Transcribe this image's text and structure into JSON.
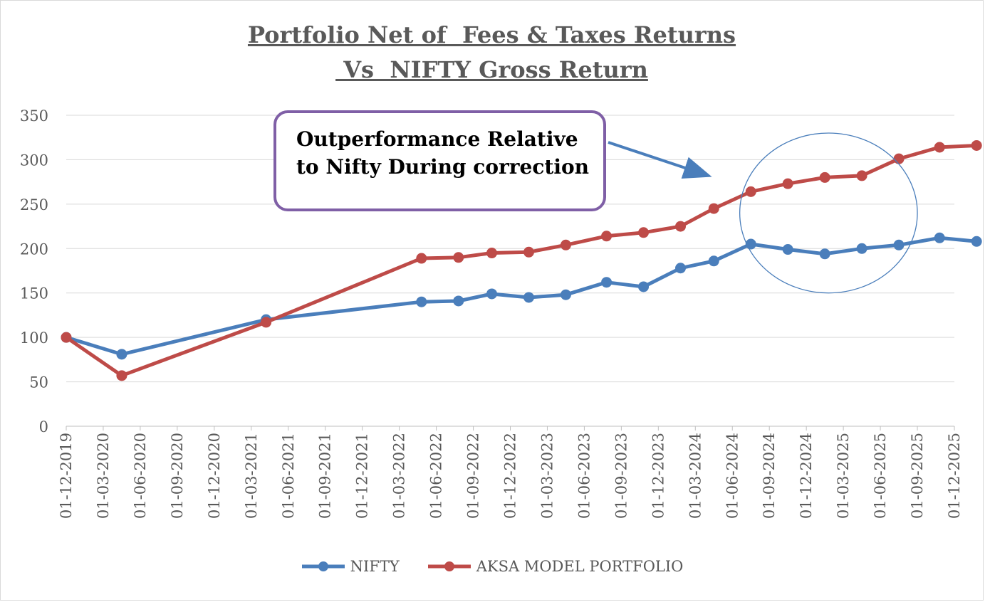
{
  "chart_data": {
    "type": "line",
    "title_line1": "Portfolio Net of  Fees & Taxes Returns",
    "title_line2": " Vs  NIFTY Gross Return",
    "xlabel": "",
    "ylabel": "",
    "ylim": [
      0,
      350
    ],
    "yticks": [
      0,
      50,
      100,
      150,
      200,
      250,
      300,
      350
    ],
    "grid": true,
    "legend_position": "bottom",
    "categories": [
      "01-12-2019",
      "01-03-2020",
      "01-06-2020",
      "01-09-2020",
      "01-12-2020",
      "01-03-2021",
      "01-06-2021",
      "01-09-2021",
      "01-12-2021",
      "01-03-2022",
      "01-06-2022",
      "01-09-2022",
      "01-12-2022",
      "01-03-2023",
      "01-06-2023",
      "01-09-2023",
      "01-12-2023",
      "01-03-2024",
      "01-06-2024",
      "01-09-2024",
      "01-12-2024",
      "01-03-2025",
      "01-06-2025",
      "01-09-2025",
      "01-12-2025"
    ],
    "series": [
      {
        "name": "NIFTY",
        "color": "#4a7ebb",
        "points": [
          {
            "x": 0,
            "y": 100
          },
          {
            "x": 1.5,
            "y": 81
          },
          {
            "x": 5.4,
            "y": 120
          },
          {
            "x": 9.6,
            "y": 140
          },
          {
            "x": 10.6,
            "y": 141
          },
          {
            "x": 11.5,
            "y": 149
          },
          {
            "x": 12.5,
            "y": 145
          },
          {
            "x": 13.5,
            "y": 148
          },
          {
            "x": 14.6,
            "y": 162
          },
          {
            "x": 15.6,
            "y": 157
          },
          {
            "x": 16.6,
            "y": 178
          },
          {
            "x": 17.5,
            "y": 186
          },
          {
            "x": 18.5,
            "y": 205
          },
          {
            "x": 19.5,
            "y": 199
          },
          {
            "x": 20.5,
            "y": 194
          },
          {
            "x": 21.5,
            "y": 200
          },
          {
            "x": 22.5,
            "y": 204
          },
          {
            "x": 23.6,
            "y": 212
          },
          {
            "x": 24.6,
            "y": 208
          }
        ]
      },
      {
        "name": "AKSA MODEL PORTFOLIO",
        "color": "#be4b48",
        "points": [
          {
            "x": 0,
            "y": 100
          },
          {
            "x": 1.5,
            "y": 57
          },
          {
            "x": 5.4,
            "y": 117
          },
          {
            "x": 9.6,
            "y": 189
          },
          {
            "x": 10.6,
            "y": 190
          },
          {
            "x": 11.5,
            "y": 195
          },
          {
            "x": 12.5,
            "y": 196
          },
          {
            "x": 13.5,
            "y": 204
          },
          {
            "x": 14.6,
            "y": 214
          },
          {
            "x": 15.6,
            "y": 218
          },
          {
            "x": 16.6,
            "y": 225
          },
          {
            "x": 17.5,
            "y": 245
          },
          {
            "x": 18.5,
            "y": 264
          },
          {
            "x": 19.5,
            "y": 273
          },
          {
            "x": 20.5,
            "y": 280
          },
          {
            "x": 21.5,
            "y": 282
          },
          {
            "x": 22.5,
            "y": 301
          },
          {
            "x": 23.6,
            "y": 314
          },
          {
            "x": 24.6,
            "y": 316
          }
        ]
      }
    ],
    "annotation": {
      "line1": "Outperformance Relative",
      "line2": "to Nifty During correction",
      "box_color": "#7f5fa6",
      "arrow_color": "#4a7ebb",
      "circle_color": "#4a7ebb",
      "circle_center": {
        "x": 20.6,
        "y": 240
      },
      "circle_radius_x": 2.4,
      "circle_radius_y": 90
    }
  }
}
